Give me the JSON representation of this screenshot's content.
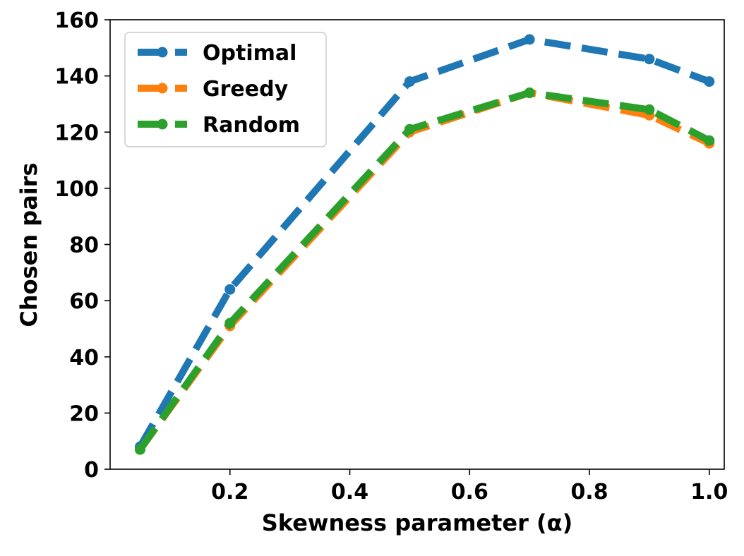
{
  "chart_data": {
    "type": "line",
    "title": "",
    "xlabel": "Skewness parameter (α)",
    "ylabel": "Chosen pairs",
    "xlim": [
      0.0,
      1.025
    ],
    "ylim": [
      0,
      160
    ],
    "xticks": [
      0.2,
      0.4,
      0.6,
      0.8,
      1.0
    ],
    "xtick_labels": [
      "0.2",
      "0.4",
      "0.6",
      "0.8",
      "1.0"
    ],
    "yticks": [
      0,
      20,
      40,
      60,
      80,
      100,
      120,
      140,
      160
    ],
    "ytick_labels": [
      "0",
      "20",
      "40",
      "60",
      "80",
      "100",
      "120",
      "140",
      "160"
    ],
    "grid": false,
    "legend_position": "top-left",
    "x": [
      0.05,
      0.2,
      0.5,
      0.7,
      0.9,
      1.0
    ],
    "series": [
      {
        "name": "Optimal",
        "color": "#1f77b4",
        "line_style": "dashed",
        "marker": "circle",
        "values": [
          8,
          64,
          138,
          153,
          146,
          138
        ]
      },
      {
        "name": "Greedy",
        "color": "#ff7f0e",
        "line_style": "dashed",
        "marker": "circle",
        "values": [
          7,
          51,
          120,
          134,
          126,
          116
        ]
      },
      {
        "name": "Random",
        "color": "#2ca02c",
        "line_style": "dashed",
        "marker": "circle",
        "values": [
          7,
          52,
          121,
          134,
          128,
          117
        ]
      }
    ]
  }
}
